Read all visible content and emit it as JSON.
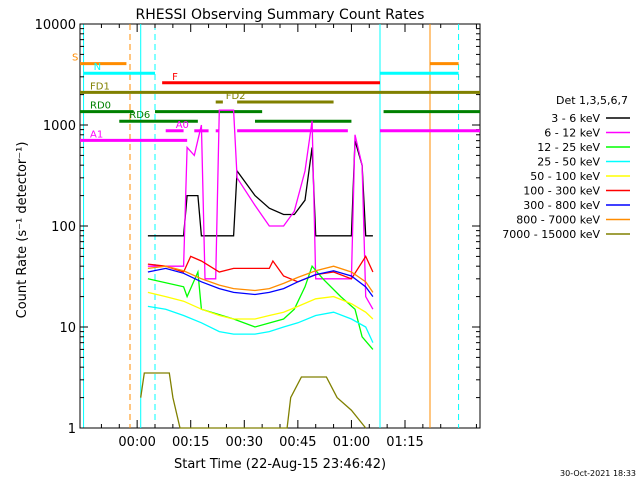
{
  "chart_data": {
    "type": "line",
    "title": "RHESSI Observing Summary Count Rates",
    "xlabel": "Start Time (22-Aug-15 23:46:42)",
    "ylabel": "Count Rate (s⁻¹ detector⁻¹)",
    "y_scale": "log",
    "ylim": [
      1,
      10000
    ],
    "xlim_minutes": [
      -16,
      96
    ],
    "x_ticks": [
      {
        "label": "00:00",
        "min": 0
      },
      {
        "label": "00:15",
        "min": 15
      },
      {
        "label": "00:30",
        "min": 30
      },
      {
        "label": "00:45",
        "min": 45
      },
      {
        "label": "01:00",
        "min": 60
      },
      {
        "label": "01:15",
        "min": 75
      }
    ],
    "y_ticks": [
      {
        "label": "1",
        "value": 1
      },
      {
        "label": "10",
        "value": 10
      },
      {
        "label": "100",
        "value": 100
      },
      {
        "label": "1000",
        "value": 1000
      },
      {
        "label": "10000",
        "value": 10000
      }
    ],
    "legend_title": "Det 1,3,5,6,7",
    "legend_position": "right",
    "series": [
      {
        "name": "3 - 6 keV",
        "color": "#000000",
        "points": [
          [
            3,
            80
          ],
          [
            13,
            80
          ],
          [
            14,
            200
          ],
          [
            17,
            200
          ],
          [
            18,
            80
          ],
          [
            27,
            80
          ],
          [
            28,
            350
          ],
          [
            33,
            200
          ],
          [
            37,
            150
          ],
          [
            41,
            130
          ],
          [
            44,
            130
          ],
          [
            47,
            180
          ],
          [
            49,
            600
          ],
          [
            50,
            80
          ],
          [
            60,
            80
          ],
          [
            61,
            700
          ],
          [
            63,
            400
          ],
          [
            64,
            80
          ],
          [
            66,
            80
          ]
        ]
      },
      {
        "name": "6 - 12 keV",
        "color": "#ff00ff",
        "points": [
          [
            3,
            40
          ],
          [
            13,
            40
          ],
          [
            14,
            600
          ],
          [
            16,
            500
          ],
          [
            18,
            1000
          ],
          [
            19,
            30
          ],
          [
            22,
            30
          ],
          [
            23,
            1400
          ],
          [
            27,
            1400
          ],
          [
            28,
            300
          ],
          [
            33,
            160
          ],
          [
            37,
            100
          ],
          [
            41,
            100
          ],
          [
            44,
            140
          ],
          [
            47,
            350
          ],
          [
            49,
            1100
          ],
          [
            50,
            30
          ],
          [
            60,
            30
          ],
          [
            61,
            800
          ],
          [
            63,
            400
          ],
          [
            64,
            20
          ],
          [
            66,
            15
          ]
        ]
      },
      {
        "name": "12 - 25 keV",
        "color": "#00ff00",
        "points": [
          [
            3,
            30
          ],
          [
            13,
            25
          ],
          [
            14,
            20
          ],
          [
            17,
            35
          ],
          [
            18,
            15
          ],
          [
            27,
            12
          ],
          [
            33,
            10
          ],
          [
            41,
            12
          ],
          [
            44,
            15
          ],
          [
            47,
            25
          ],
          [
            49,
            40
          ],
          [
            52,
            30
          ],
          [
            57,
            20
          ],
          [
            61,
            15
          ],
          [
            63,
            8
          ],
          [
            66,
            6
          ]
        ]
      },
      {
        "name": "25 - 50 keV",
        "color": "#00ffff",
        "points": [
          [
            3,
            16
          ],
          [
            8,
            15
          ],
          [
            13,
            13
          ],
          [
            18,
            11
          ],
          [
            23,
            9
          ],
          [
            27,
            8.5
          ],
          [
            33,
            8.5
          ],
          [
            37,
            9
          ],
          [
            41,
            10
          ],
          [
            45,
            11
          ],
          [
            50,
            13
          ],
          [
            55,
            14
          ],
          [
            60,
            12
          ],
          [
            64,
            10
          ],
          [
            66,
            7
          ]
        ]
      },
      {
        "name": "50 - 100 keV",
        "color": "#ffff00",
        "points": [
          [
            3,
            22
          ],
          [
            8,
            20
          ],
          [
            13,
            18
          ],
          [
            18,
            15
          ],
          [
            23,
            13
          ],
          [
            27,
            12
          ],
          [
            33,
            12
          ],
          [
            37,
            13
          ],
          [
            41,
            14
          ],
          [
            45,
            16
          ],
          [
            50,
            19
          ],
          [
            55,
            20
          ],
          [
            60,
            17
          ],
          [
            64,
            14
          ],
          [
            66,
            12
          ]
        ]
      },
      {
        "name": "100 - 300 keV",
        "color": "#ff0000",
        "points": [
          [
            3,
            42
          ],
          [
            8,
            40
          ],
          [
            13,
            35
          ],
          [
            15,
            50
          ],
          [
            18,
            45
          ],
          [
            23,
            35
          ],
          [
            27,
            38
          ],
          [
            33,
            38
          ],
          [
            37,
            38
          ],
          [
            38,
            45
          ],
          [
            41,
            32
          ],
          [
            45,
            28
          ],
          [
            50,
            33
          ],
          [
            55,
            35
          ],
          [
            60,
            30
          ],
          [
            64,
            50
          ],
          [
            66,
            35
          ]
        ]
      },
      {
        "name": "300 - 800 keV",
        "color": "#0000ff",
        "points": [
          [
            3,
            35
          ],
          [
            8,
            38
          ],
          [
            13,
            34
          ],
          [
            18,
            28
          ],
          [
            23,
            24
          ],
          [
            27,
            22
          ],
          [
            33,
            21
          ],
          [
            37,
            22
          ],
          [
            41,
            24
          ],
          [
            45,
            28
          ],
          [
            50,
            33
          ],
          [
            55,
            36
          ],
          [
            60,
            32
          ],
          [
            64,
            25
          ],
          [
            66,
            20
          ]
        ]
      },
      {
        "name": "800 - 7000 keV",
        "color": "#ff8c00",
        "points": [
          [
            3,
            38
          ],
          [
            8,
            40
          ],
          [
            13,
            36
          ],
          [
            18,
            30
          ],
          [
            23,
            26
          ],
          [
            27,
            24
          ],
          [
            33,
            23
          ],
          [
            37,
            24
          ],
          [
            41,
            27
          ],
          [
            45,
            31
          ],
          [
            50,
            36
          ],
          [
            55,
            40
          ],
          [
            60,
            35
          ],
          [
            64,
            28
          ],
          [
            66,
            22
          ]
        ]
      },
      {
        "name": "7000 - 15000 keV",
        "color": "#808000",
        "points": [
          [
            1,
            2
          ],
          [
            2,
            3.5
          ],
          [
            9,
            3.5
          ],
          [
            10,
            2
          ],
          [
            12,
            1
          ],
          [
            42,
            1
          ],
          [
            43,
            2
          ],
          [
            46,
            3.2
          ],
          [
            53,
            3.2
          ],
          [
            56,
            2
          ],
          [
            60,
            1.5
          ],
          [
            64,
            1
          ]
        ]
      }
    ],
    "flag_bars": [
      {
        "label": "S",
        "color": "#ff8c00",
        "row": 10,
        "segments": [
          [
            -16,
            -3
          ],
          [
            82,
            90
          ]
        ]
      },
      {
        "label": "N",
        "color": "#00ffff",
        "row": 9,
        "segments": [
          [
            -15,
            5
          ],
          [
            68,
            90
          ]
        ]
      },
      {
        "label": "F",
        "color": "#ff0000",
        "row": 8,
        "segments": [
          [
            7,
            68
          ]
        ]
      },
      {
        "label": "FD1",
        "color": "#808000",
        "row": 7,
        "segments": [
          [
            -16,
            96
          ]
        ]
      },
      {
        "label": "FD2",
        "color": "#808000",
        "row": 6,
        "segments": [
          [
            22,
            24
          ],
          [
            28,
            55
          ]
        ]
      },
      {
        "label": "RD0",
        "color": "#008000",
        "row": 5,
        "segments": [
          [
            -16,
            -1
          ],
          [
            5,
            35
          ],
          [
            69,
            96
          ]
        ]
      },
      {
        "label": "RD6",
        "color": "#008000",
        "row": 4,
        "segments": [
          [
            -5,
            17
          ],
          [
            33,
            60
          ]
        ]
      },
      {
        "label": "A0",
        "color": "#ff00ff",
        "row": 3,
        "segments": [
          [
            8,
            13
          ],
          [
            16,
            20
          ],
          [
            22,
            23
          ],
          [
            28,
            59
          ],
          [
            68,
            96
          ]
        ]
      },
      {
        "label": "A1",
        "color": "#ff00ff",
        "row": 2,
        "segments": [
          [
            -16,
            14
          ]
        ]
      }
    ],
    "vertical_lines": [
      {
        "min": -15,
        "color": "#00ffff",
        "style": "solid"
      },
      {
        "min": -2,
        "color": "#ff8c00",
        "style": "dashed"
      },
      {
        "min": 1,
        "color": "#00ffff",
        "style": "solid"
      },
      {
        "min": 5,
        "color": "#00ffff",
        "style": "dashed"
      },
      {
        "min": 68,
        "color": "#00ffff",
        "style": "solid"
      },
      {
        "min": 82,
        "color": "#ff8c00",
        "style": "solid"
      },
      {
        "min": 90,
        "color": "#00ffff",
        "style": "dashed"
      }
    ],
    "footer_date": "30-Oct-2021 18:33"
  }
}
